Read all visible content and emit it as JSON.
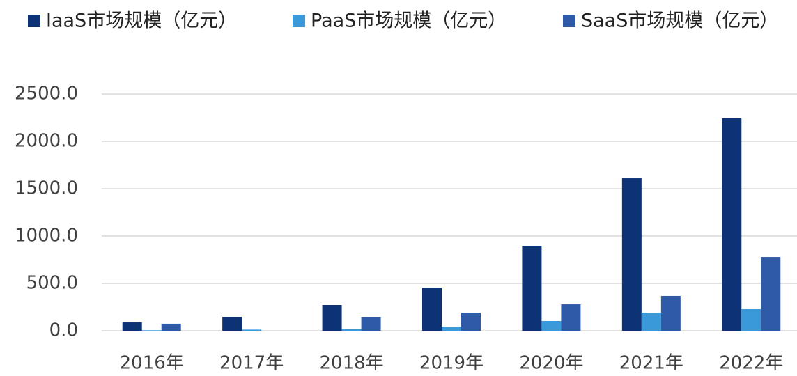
{
  "chart_data": {
    "type": "bar",
    "categories": [
      "2016年",
      "2017年",
      "2018年",
      "2019年",
      "2020年",
      "2021年",
      "2022年"
    ],
    "series": [
      {
        "name": "IaaS市场规模（亿元）",
        "color": "#0d3276",
        "values": [
          88,
          147,
          272,
          456,
          897,
          1610,
          2243
        ]
      },
      {
        "name": "PaaS市场规模（亿元）",
        "color": "#3a9ad9",
        "values": [
          5,
          12,
          22,
          44,
          103,
          191,
          228
        ]
      },
      {
        "name": "SaaS市场规模（亿元）",
        "color": "#2f5aa8",
        "values": [
          74,
          null,
          147,
          191,
          279,
          368,
          779
        ]
      }
    ],
    "ylim": [
      0,
      2500
    ],
    "yticks": [
      {
        "value": 0,
        "label": "0.0"
      },
      {
        "value": 500,
        "label": "500.0"
      },
      {
        "value": 1000,
        "label": "1000.0"
      },
      {
        "value": 1500,
        "label": "1500.0"
      },
      {
        "value": 2000,
        "label": "2000.0"
      },
      {
        "value": 2500,
        "label": "2500.0"
      }
    ],
    "grid": true,
    "legend": "top"
  }
}
